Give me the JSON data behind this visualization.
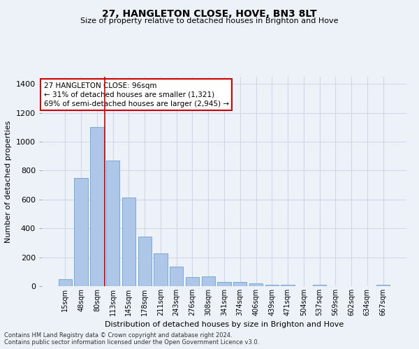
{
  "title": "27, HANGLETON CLOSE, HOVE, BN3 8LT",
  "subtitle": "Size of property relative to detached houses in Brighton and Hove",
  "xlabel": "Distribution of detached houses by size in Brighton and Hove",
  "ylabel": "Number of detached properties",
  "footnote1": "Contains HM Land Registry data © Crown copyright and database right 2024.",
  "footnote2": "Contains public sector information licensed under the Open Government Licence v3.0.",
  "bar_labels": [
    "15sqm",
    "48sqm",
    "80sqm",
    "113sqm",
    "145sqm",
    "178sqm",
    "211sqm",
    "243sqm",
    "276sqm",
    "308sqm",
    "341sqm",
    "374sqm",
    "406sqm",
    "439sqm",
    "471sqm",
    "504sqm",
    "537sqm",
    "569sqm",
    "602sqm",
    "634sqm",
    "667sqm"
  ],
  "bar_values": [
    50,
    750,
    1100,
    870,
    615,
    345,
    225,
    135,
    65,
    70,
    30,
    30,
    20,
    12,
    10,
    0,
    12,
    0,
    0,
    0,
    12
  ],
  "bar_color": "#aec6e8",
  "bar_edge_color": "#6aa0d4",
  "grid_color": "#d0d8e8",
  "bg_color": "#edf2f9",
  "vline_color": "#cc0000",
  "annotation_line1": "27 HANGLETON CLOSE: 96sqm",
  "annotation_line2": "← 31% of detached houses are smaller (1,321)",
  "annotation_line3": "69% of semi-detached houses are larger (2,945) →",
  "annotation_box_color": "white",
  "annotation_border_color": "#cc0000",
  "ylim": [
    0,
    1450
  ],
  "yticks": [
    0,
    200,
    400,
    600,
    800,
    1000,
    1200,
    1400
  ],
  "title_fontsize": 10,
  "subtitle_fontsize": 8,
  "ylabel_fontsize": 8,
  "xlabel_fontsize": 8,
  "tick_fontsize": 8,
  "xtick_fontsize": 7,
  "footnote_fontsize": 6,
  "annotation_fontsize": 7.5
}
